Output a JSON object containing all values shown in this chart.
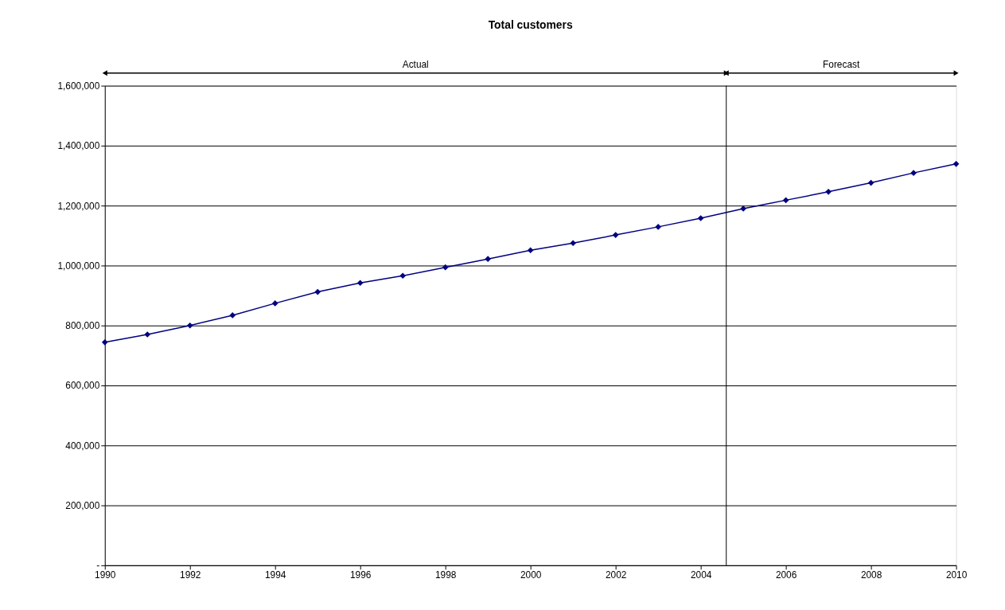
{
  "chart_data": {
    "type": "line",
    "title": "Total customers",
    "x": [
      1990,
      1991,
      1992,
      1993,
      1994,
      1995,
      1996,
      1997,
      1998,
      1999,
      2000,
      2001,
      2002,
      2003,
      2004,
      2005,
      2006,
      2007,
      2008,
      2009,
      2010
    ],
    "series": [
      {
        "color": "#000080",
        "values": [
          744000,
          770000,
          800000,
          834000,
          874000,
          912000,
          942000,
          966000,
          994000,
          1022000,
          1051000,
          1075000,
          1102000,
          1129000,
          1158000,
          1190000,
          1218000,
          1246000,
          1276000,
          1309000,
          1339000
        ]
      }
    ],
    "xlim": [
      1990,
      2010
    ],
    "xticks": [
      1990,
      1992,
      1994,
      1996,
      1998,
      2000,
      2002,
      2004,
      2006,
      2008,
      2010
    ],
    "ylim": [
      0,
      1600000
    ],
    "yticks": [
      {
        "value": 0,
        "label": "-"
      },
      {
        "value": 200000,
        "label": "200,000"
      },
      {
        "value": 400000,
        "label": "400,000"
      },
      {
        "value": 600000,
        "label": "600,000"
      },
      {
        "value": 800000,
        "label": "800,000"
      },
      {
        "value": 1000000,
        "label": "1,000,000"
      },
      {
        "value": 1200000,
        "label": "1,200,000"
      },
      {
        "value": 1400000,
        "label": "1,400,000"
      },
      {
        "value": 1600000,
        "label": "1,600,000"
      }
    ],
    "ref_lines": [
      {
        "axis": "x",
        "value": 2004.6,
        "color": "#000000"
      }
    ],
    "annotations": [
      "Actual",
      "Forecast"
    ],
    "grid": "y",
    "marker": "diamond",
    "line_style": "solid"
  }
}
